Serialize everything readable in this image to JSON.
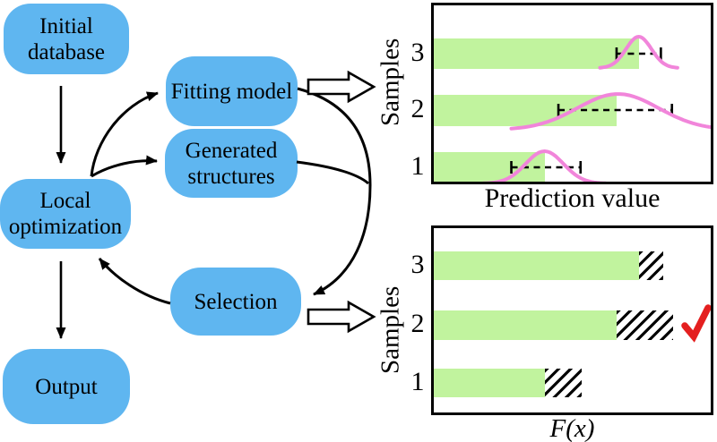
{
  "flowchart": {
    "node_color": "#5fb6f0",
    "nodes": [
      {
        "id": "initial-database",
        "label": "Initial database"
      },
      {
        "id": "fitting-model",
        "label": "Fitting model"
      },
      {
        "id": "generated-structures",
        "label": "Generated structures"
      },
      {
        "id": "local-optimization",
        "label": "Local optimization"
      },
      {
        "id": "selection",
        "label": "Selection"
      },
      {
        "id": "output",
        "label": "Output"
      }
    ],
    "arrows": [
      "initial-database -> local-optimization",
      "local-optimization -> fitting-model",
      "local-optimization -> generated-structures",
      "fitting-model -> selection",
      "generated-structures -> selection",
      "selection -> local-optimization",
      "local-optimization -> output",
      "fitting-model => prediction-chart (block arrow)",
      "selection => acquisition-chart (block arrow)"
    ]
  },
  "chart_data": [
    {
      "type": "bar",
      "orientation": "horizontal",
      "title": "",
      "xlabel": "Prediction value",
      "ylabel": "Samples",
      "categories": [
        "1",
        "2",
        "3"
      ],
      "values": [
        4.0,
        6.6,
        7.4
      ],
      "xlim": [
        0,
        10
      ],
      "grid": false,
      "bar_color": "#c1f39e",
      "curve_color": "#f185da",
      "error_bar_style": "dashed-with-caps",
      "error_bars": [
        {
          "sample": "1",
          "from": 2.8,
          "to": 5.3
        },
        {
          "sample": "2",
          "from": 4.5,
          "to": 8.6
        },
        {
          "sample": "3",
          "from": 6.6,
          "to": 8.2
        }
      ],
      "distributions": [
        {
          "sample": "1",
          "center": 4.0,
          "sigma": 0.97,
          "draw_from": 1.8,
          "draw_to": 6.2
        },
        {
          "sample": "2",
          "center": 6.65,
          "sigma": 2.07,
          "draw_from": 2.8,
          "draw_to": 10.0
        },
        {
          "sample": "3",
          "center": 7.4,
          "sigma": 0.65,
          "draw_from": 6.0,
          "draw_to": 8.8
        }
      ]
    },
    {
      "type": "bar",
      "orientation": "horizontal",
      "title": "",
      "xlabel": "F(x)",
      "ylabel": "Samples",
      "categories": [
        "1",
        "2",
        "3"
      ],
      "values": [
        4.0,
        6.6,
        7.4
      ],
      "hatch_extension": [
        1.35,
        2.05,
        0.9
      ],
      "xlim": [
        0,
        10
      ],
      "grid": false,
      "bar_color": "#c1f39e",
      "hatch_color": "#000000",
      "selected_sample": "2",
      "checkmark_color": "#e41f1f"
    }
  ]
}
